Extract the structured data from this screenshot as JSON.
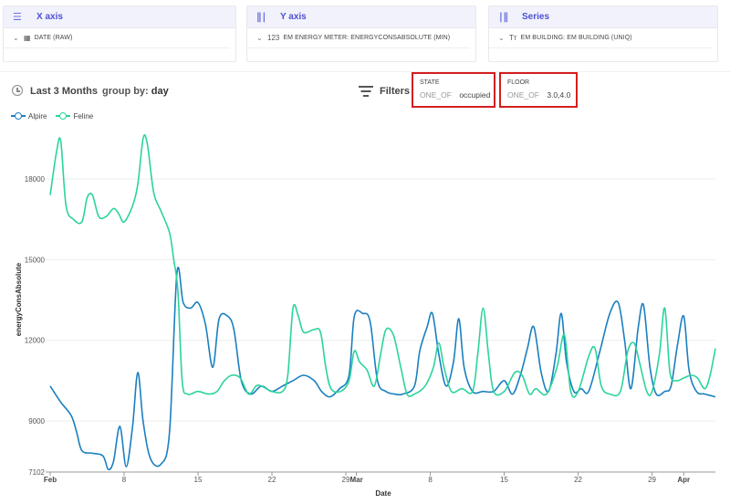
{
  "config": {
    "x_axis": {
      "title": "X axis",
      "icon": "list-icon",
      "field_icon": "calendar-icon",
      "field": "DATE (RAW)"
    },
    "y_axis": {
      "title": "Y axis",
      "icon": "numeric-bars-icon",
      "field_icon": "123",
      "field": "EM ENERGY METER: ENERGYCONSABSOLUTE (MIN)"
    },
    "series": {
      "title": "Series",
      "icon": "series-bars-icon",
      "field_icon": "Tт",
      "field": "EM BUILDING: EM BUILDING (UNIQ)"
    }
  },
  "toolbar": {
    "range": "Last 3 Months",
    "group_by_label": "group by:",
    "group_by_value": "day",
    "filters_label": "Filters"
  },
  "filters": [
    {
      "name": "STATE",
      "operator": "ONE_OF",
      "value": "occupied"
    },
    {
      "name": "FLOOR",
      "operator": "ONE_OF",
      "value": "3.0,4.0"
    }
  ],
  "colors": {
    "alpire": "#1a7fc0",
    "feline": "#2ad49c",
    "accent": "#4d4fd6",
    "highlight": "#d31f1f"
  },
  "chart_data": {
    "type": "line",
    "title": "",
    "xlabel": "Date",
    "ylabel": "energyConsAbsolute",
    "x_start_date": "Feb 1",
    "x_unit": "day",
    "xlim": [
      0,
      63
    ],
    "ylim": [
      7102,
      19900
    ],
    "y_ticks": [
      7102,
      9000,
      12000,
      15000,
      18000
    ],
    "x_ticks": [
      {
        "label": "Feb",
        "x": 0,
        "bold": true
      },
      {
        "label": "8",
        "x": 7
      },
      {
        "label": "15",
        "x": 14
      },
      {
        "label": "22",
        "x": 21
      },
      {
        "label": "29",
        "x": 28
      },
      {
        "label": "Mar",
        "x": 29,
        "bold": true
      },
      {
        "label": "8",
        "x": 36
      },
      {
        "label": "15",
        "x": 43
      },
      {
        "label": "22",
        "x": 50
      },
      {
        "label": "29",
        "x": 57
      },
      {
        "label": "Apr",
        "x": 60,
        "bold": true
      }
    ],
    "grid": true,
    "legend_position": "top-left",
    "series": [
      {
        "name": "Alpire",
        "points": [
          [
            0,
            10300
          ],
          [
            1,
            9700
          ],
          [
            2,
            9200
          ],
          [
            2.5,
            8600
          ],
          [
            3,
            7900
          ],
          [
            4,
            7800
          ],
          [
            5,
            7700
          ],
          [
            5.5,
            7200
          ],
          [
            6,
            7500
          ],
          [
            6.6,
            8800
          ],
          [
            7.2,
            7300
          ],
          [
            7.8,
            8800
          ],
          [
            8.3,
            10800
          ],
          [
            8.8,
            9000
          ],
          [
            9.5,
            7600
          ],
          [
            10.5,
            7400
          ],
          [
            11.3,
            8600
          ],
          [
            12,
            14500
          ],
          [
            12.6,
            13400
          ],
          [
            13.3,
            13200
          ],
          [
            14,
            13400
          ],
          [
            14.7,
            12600
          ],
          [
            15.4,
            11000
          ],
          [
            16,
            12800
          ],
          [
            16.8,
            12900
          ],
          [
            17.4,
            12400
          ],
          [
            18.1,
            10500
          ],
          [
            19,
            10000
          ],
          [
            20,
            10300
          ],
          [
            21,
            10100
          ],
          [
            22,
            10300
          ],
          [
            23,
            10500
          ],
          [
            24,
            10700
          ],
          [
            25,
            10500
          ],
          [
            25.7,
            10100
          ],
          [
            26.5,
            9900
          ],
          [
            27.4,
            10200
          ],
          [
            28.3,
            10700
          ],
          [
            28.8,
            12900
          ],
          [
            29.6,
            13000
          ],
          [
            30.3,
            12700
          ],
          [
            31,
            10500
          ],
          [
            31.8,
            10100
          ],
          [
            32.6,
            10000
          ],
          [
            33.4,
            10000
          ],
          [
            34.5,
            10300
          ],
          [
            35,
            11600
          ],
          [
            35.7,
            12500
          ],
          [
            36.2,
            13000
          ],
          [
            36.8,
            11500
          ],
          [
            37.5,
            10300
          ],
          [
            38.2,
            11200
          ],
          [
            38.7,
            12800
          ],
          [
            39.2,
            11000
          ],
          [
            40,
            10100
          ],
          [
            41,
            10100
          ],
          [
            42,
            10100
          ],
          [
            43,
            10500
          ],
          [
            43.8,
            10000
          ],
          [
            44.6,
            10800
          ],
          [
            45.2,
            11700
          ],
          [
            45.8,
            12500
          ],
          [
            46.5,
            10800
          ],
          [
            47.2,
            10100
          ],
          [
            47.9,
            11500
          ],
          [
            48.4,
            13000
          ],
          [
            48.9,
            11200
          ],
          [
            49.6,
            10100
          ],
          [
            50.3,
            10200
          ],
          [
            51,
            10100
          ],
          [
            52,
            11500
          ],
          [
            53,
            13000
          ],
          [
            53.8,
            13400
          ],
          [
            54.4,
            12000
          ],
          [
            55,
            10200
          ],
          [
            55.7,
            12500
          ],
          [
            56.2,
            13300
          ],
          [
            56.8,
            11000
          ],
          [
            57.4,
            10000
          ],
          [
            58.2,
            10100
          ],
          [
            58.8,
            10300
          ],
          [
            59.4,
            11800
          ],
          [
            60,
            12900
          ],
          [
            60.5,
            10900
          ],
          [
            61.2,
            10100
          ],
          [
            62,
            10000
          ],
          [
            63,
            9900
          ]
        ]
      },
      {
        "name": "Feline",
        "points": [
          [
            0,
            17400
          ],
          [
            0.6,
            19000
          ],
          [
            1,
            19400
          ],
          [
            1.5,
            17000
          ],
          [
            2.2,
            16500
          ],
          [
            3,
            16400
          ],
          [
            3.5,
            17300
          ],
          [
            4,
            17400
          ],
          [
            4.6,
            16600
          ],
          [
            5.3,
            16600
          ],
          [
            6,
            16900
          ],
          [
            6.5,
            16700
          ],
          [
            7,
            16400
          ],
          [
            7.8,
            17000
          ],
          [
            8.3,
            17800
          ],
          [
            8.8,
            19500
          ],
          [
            9.2,
            19300
          ],
          [
            9.8,
            17500
          ],
          [
            10.5,
            16800
          ],
          [
            11.3,
            16000
          ],
          [
            11.7,
            15000
          ],
          [
            12.1,
            13800
          ],
          [
            12.5,
            10500
          ],
          [
            13,
            10000
          ],
          [
            14,
            10100
          ],
          [
            15,
            10000
          ],
          [
            15.8,
            10100
          ],
          [
            16.5,
            10500
          ],
          [
            17.2,
            10700
          ],
          [
            18,
            10600
          ],
          [
            18.8,
            10000
          ],
          [
            19.5,
            10300
          ],
          [
            20,
            10300
          ],
          [
            21,
            10100
          ],
          [
            22,
            10100
          ],
          [
            22.5,
            10700
          ],
          [
            23,
            13200
          ],
          [
            23.5,
            12900
          ],
          [
            24,
            12300
          ],
          [
            25,
            12400
          ],
          [
            25.6,
            12300
          ],
          [
            26.1,
            11000
          ],
          [
            26.6,
            10200
          ],
          [
            27.5,
            10100
          ],
          [
            28.3,
            10500
          ],
          [
            28.8,
            11600
          ],
          [
            29.3,
            11200
          ],
          [
            30,
            10900
          ],
          [
            30.7,
            10300
          ],
          [
            31.3,
            11500
          ],
          [
            31.8,
            12400
          ],
          [
            32.5,
            12200
          ],
          [
            33.2,
            11000
          ],
          [
            33.8,
            10000
          ],
          [
            34.5,
            10000
          ],
          [
            35.5,
            10300
          ],
          [
            36.3,
            11000
          ],
          [
            36.8,
            11900
          ],
          [
            37.3,
            11000
          ],
          [
            38,
            10100
          ],
          [
            39,
            10200
          ],
          [
            40,
            10100
          ],
          [
            40.5,
            11500
          ],
          [
            41,
            13200
          ],
          [
            41.5,
            11500
          ],
          [
            42,
            10100
          ],
          [
            43,
            10100
          ],
          [
            44,
            10800
          ],
          [
            44.7,
            10700
          ],
          [
            45.4,
            10000
          ],
          [
            46,
            10200
          ],
          [
            47,
            10000
          ],
          [
            48,
            11000
          ],
          [
            48.7,
            12200
          ],
          [
            49.3,
            10100
          ],
          [
            50,
            10100
          ],
          [
            51,
            11400
          ],
          [
            51.6,
            11700
          ],
          [
            52.2,
            10300
          ],
          [
            53,
            10000
          ],
          [
            54,
            10100
          ],
          [
            54.7,
            11600
          ],
          [
            55.3,
            11900
          ],
          [
            55.8,
            11200
          ],
          [
            56.5,
            10100
          ],
          [
            57,
            10100
          ],
          [
            57.7,
            11500
          ],
          [
            58.2,
            13200
          ],
          [
            58.7,
            10800
          ],
          [
            59.3,
            10500
          ],
          [
            60,
            10600
          ],
          [
            60.7,
            10700
          ],
          [
            61.3,
            10600
          ],
          [
            62,
            10200
          ],
          [
            62.5,
            10700
          ],
          [
            63,
            11700
          ]
        ]
      }
    ]
  }
}
